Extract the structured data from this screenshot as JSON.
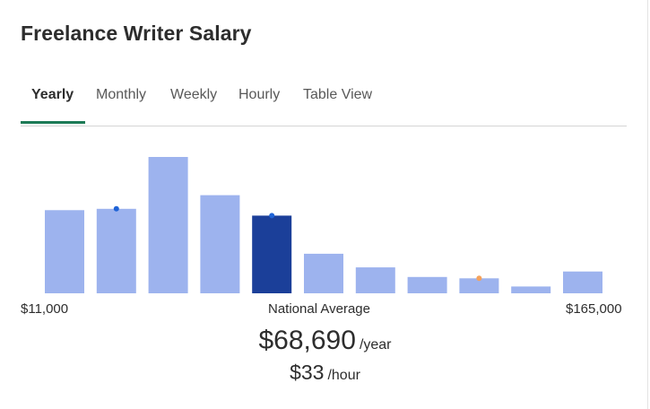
{
  "title": "Freelance Writer Salary",
  "tabs": [
    {
      "label": "Yearly",
      "active": true
    },
    {
      "label": "Monthly",
      "active": false
    },
    {
      "label": "Weekly",
      "active": false
    },
    {
      "label": "Hourly",
      "active": false
    },
    {
      "label": "Table View",
      "active": false
    }
  ],
  "colors": {
    "bar": "#9db3ee",
    "bar_highlight": "#1b3f99",
    "active_tab_underline": "#1c7a56",
    "marker_blue": "#1f63d6",
    "marker_orange": "#f5a25c"
  },
  "axis": {
    "min_label": "$11,000",
    "center_label": "National Average",
    "max_label": "$165,000"
  },
  "average": {
    "yearly_value": "$68,690",
    "yearly_unit": "/year",
    "hourly_value": "$33",
    "hourly_unit": "/hour"
  },
  "chart_data": {
    "type": "bar",
    "x_range": [
      "$11,000",
      "$165,000"
    ],
    "values": [
      61,
      62,
      100,
      72,
      57,
      29,
      19,
      12,
      11,
      5,
      16
    ],
    "highlight_index": 4,
    "markers": [
      {
        "bar_index": 1,
        "color": "blue"
      },
      {
        "bar_index": 4,
        "color": "blue"
      },
      {
        "bar_index": 8,
        "color": "orange"
      }
    ]
  }
}
